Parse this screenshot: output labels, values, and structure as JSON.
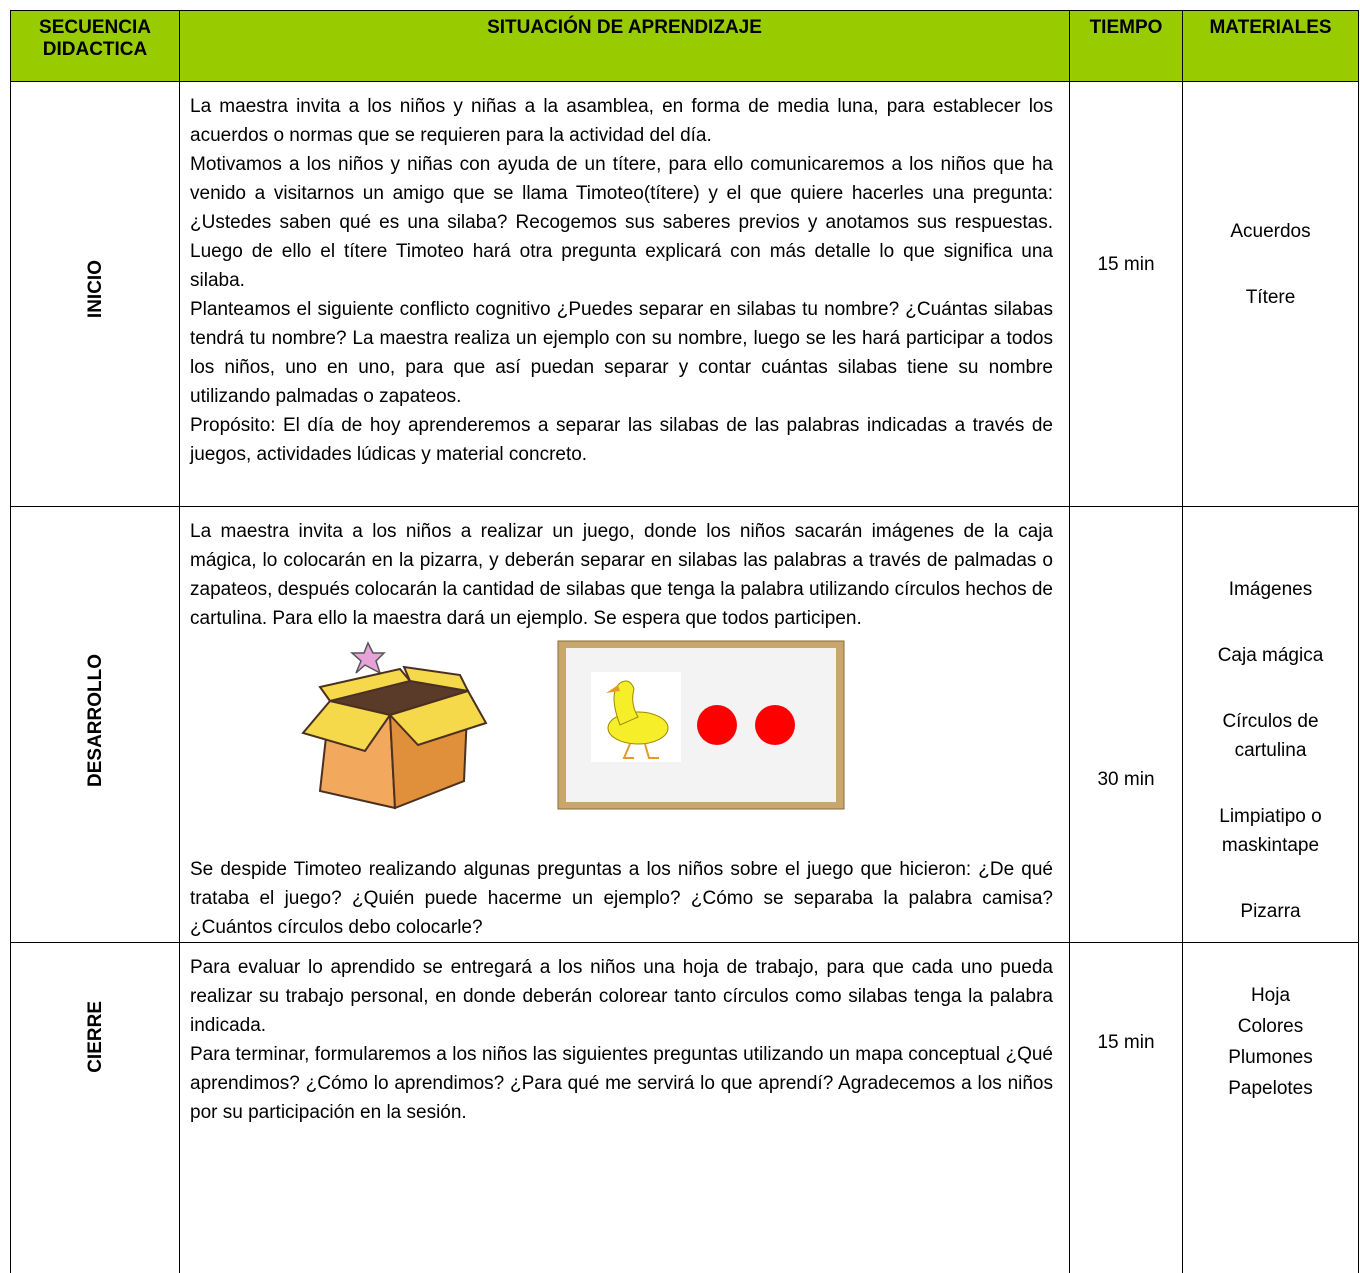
{
  "header": [
    "SECUENCIA DIDACTICA",
    "SITUACIÓN DE APRENDIZAJE",
    "TIEMPO",
    "MATERIALES"
  ],
  "rows": [
    {
      "stage": "INICIO",
      "paragraphs": [
        "La maestra invita a los niños y niñas a la asamblea, en forma de media luna, para establecer los acuerdos o normas que se requieren para la actividad del día.",
        "Motivamos a los niños y niñas con ayuda de un títere, para ello comunicaremos a los niños que ha venido a visitarnos un amigo que se llama Timoteo(títere) y el que quiere hacerles una pregunta: ¿Ustedes saben qué es una silaba? Recogemos sus saberes previos y anotamos sus respuestas. Luego de ello el títere Timoteo hará otra pregunta explicará con más detalle lo que significa una silaba.",
        "Planteamos el siguiente conflicto cognitivo ¿Puedes separar en silabas tu nombre? ¿Cuántas silabas tendrá tu nombre? La maestra realiza un ejemplo con su nombre, luego se les hará participar a todos los niños, uno en uno, para que así puedan separar y contar cuántas silabas tiene su nombre utilizando palmadas o zapateos.",
        "Propósito: El día de hoy aprenderemos a separar las silabas de las palabras indicadas a través de juegos, actividades lúdicas y material concreto."
      ],
      "time": "15 min",
      "materials": [
        "Acuerdos",
        "Títere"
      ]
    },
    {
      "stage": "DESARROLLO",
      "paragraphs": [
        "La maestra invita a los niños a realizar un juego, donde los niños sacarán imágenes de la caja mágica, lo colocarán en la pizarra, y deberán separar en silabas las palabras a través de palmadas o zapateos, después colocarán la cantidad de silabas que tenga la palabra utilizando círculos hechos de cartulina. Para ello la maestra dará un ejemplo. Se espera que todos participen.",
        "Se despide Timoteo realizando algunas preguntas a los niños sobre el juego que hicieron: ¿De qué trataba el juego? ¿Quién puede hacerme un ejemplo? ¿Cómo se separaba la palabra camisa? ¿Cuántos círculos debo colocarle?"
      ],
      "time": "30 min",
      "materials": [
        "Imágenes",
        "Caja mágica",
        "Círculos de cartulina",
        "Limpiatipo o maskintape",
        "Pizarra"
      ]
    },
    {
      "stage": "CIERRE",
      "paragraphs": [
        "Para evaluar lo aprendido se entregará a los niños una hoja de trabajo, para que cada uno pueda realizar su trabajo personal, en donde deberán colorear tanto círculos como silabas tenga la palabra indicada.",
        "Para terminar, formularemos a los niños las siguientes preguntas utilizando un mapa conceptual ¿Qué aprendimos? ¿Cómo lo aprendimos? ¿Para qué me servirá lo que aprendí? Agradecemos a los niños por su participación en la sesión."
      ],
      "time": "15 min",
      "materials": [
        "Hoja",
        "Colores",
        "Plumones",
        "Papelotes"
      ]
    }
  ]
}
